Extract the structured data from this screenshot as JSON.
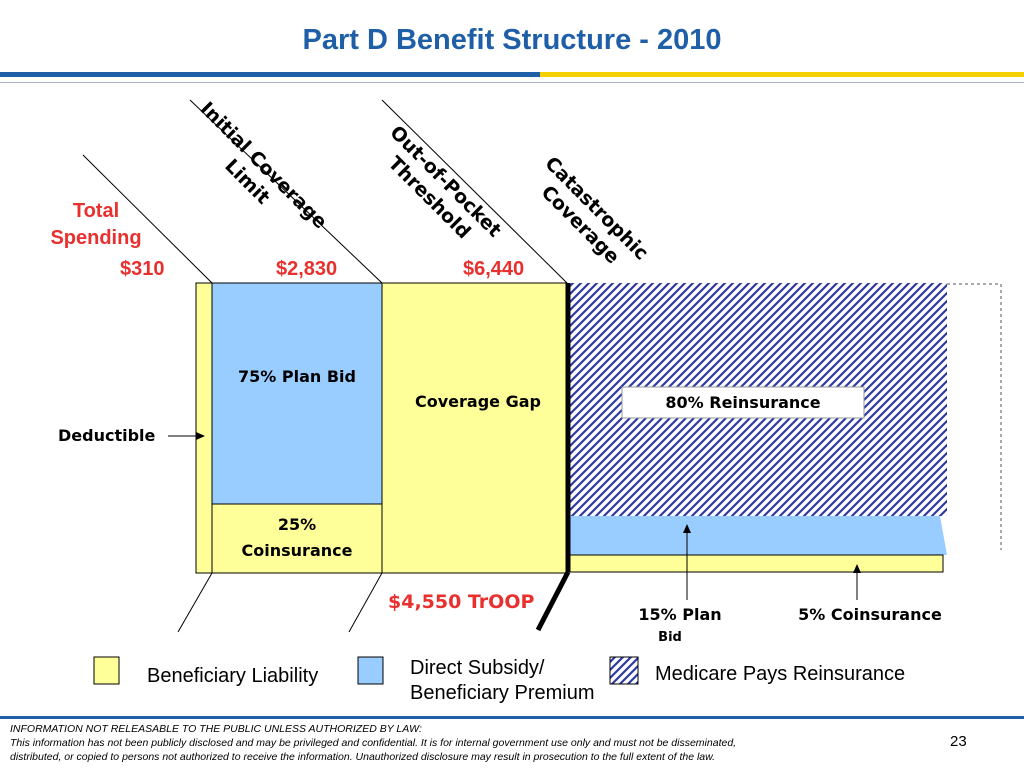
{
  "title": "Part D Benefit Structure - 2010",
  "total_spending": "Total\nSpending",
  "thresholds": {
    "deductible_amount": "$310",
    "initial_limit_amount": "$2,830",
    "oop_amount": "$6,440"
  },
  "diagonal_labels": {
    "initial_coverage_limit": "Initial Coverage\nLimit",
    "out_of_pocket_threshold": "Out-of-Pocket\nThreshold",
    "catastrophic_coverage": "Catastrophic\nCoverage"
  },
  "boxes": {
    "plan_bid": "75% Plan Bid",
    "coinsurance_25": "25%\nCoinsurance",
    "coverage_gap": "Coverage Gap",
    "reinsurance_80": "80% Reinsurance"
  },
  "callouts": {
    "deductible": "Deductible",
    "troop": "$4,550 TrOOP",
    "plan_15": "15% Plan",
    "plan_15_bid": "Bid",
    "coinsurance_5": "5% Coinsurance"
  },
  "legend": {
    "beneficiary_liability": "Beneficiary Liability",
    "direct_subsidy": "Direct Subsidy/\nBeneficiary Premium",
    "medicare_reinsurance": "Medicare Pays Reinsurance"
  },
  "colors": {
    "beneficiary": "#FFFF99",
    "subsidy": "#99CCFF",
    "reinsurance_pattern": "#2E3A9F",
    "title": "#1F5FA8",
    "amounts": "#E8312F"
  },
  "footer": {
    "notice": "INFORMATION NOT RELEASABLE TO THE PUBLIC UNLESS AUTHORIZED BY LAW:\nThis information has not been publicly disclosed and may be privileged and confidential.  It is for internal government use only and must not be disseminated,\ndistributed, or copied to persons not authorized to receive the information.  Unauthorized disclosure may result in prosecution to the full extent of the law.",
    "page_number": "23"
  }
}
